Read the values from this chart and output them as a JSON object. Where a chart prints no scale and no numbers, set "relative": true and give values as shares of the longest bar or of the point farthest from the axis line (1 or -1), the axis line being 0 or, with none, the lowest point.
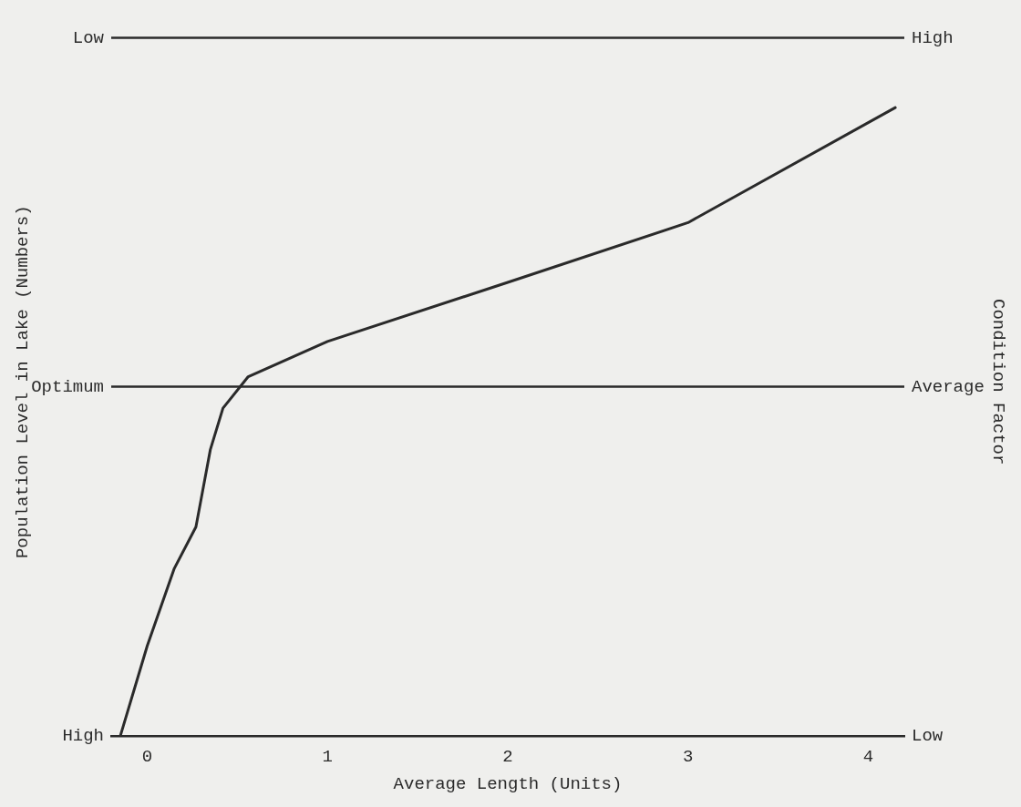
{
  "chart_data": {
    "type": "line",
    "xlabel": "Average Length (Units)",
    "ylabel": "Population Level in Lake (Numbers)",
    "y2label": "Condition Factor",
    "relative": true,
    "series": [
      {
        "color": "#2a2a2a",
        "x": [
          -0.15,
          0.0,
          0.15,
          0.27,
          0.35,
          0.42,
          0.56,
          1.0,
          2.0,
          3.0,
          4.15
        ],
        "values": [
          0,
          0.144,
          0.267,
          0.333,
          0.456,
          0.522,
          0.572,
          0.628,
          0.722,
          0.817,
          1
        ]
      }
    ],
    "xlim": [
      -0.2,
      4.2
    ],
    "xticks": [
      0,
      1,
      2,
      3,
      4
    ],
    "ref_lines": [
      {
        "axis": "y",
        "value": 0.556,
        "label": "Optimum",
        "color": "#2a2a2a"
      },
      {
        "axis": "y",
        "value": 1.111,
        "label": "Low",
        "color": "#2a2a2a"
      }
    ],
    "annotations": [
      "High",
      "Average",
      "High",
      "Low"
    ],
    "grid": false,
    "legend": false,
    "marker": "none",
    "line_style": "solid"
  }
}
